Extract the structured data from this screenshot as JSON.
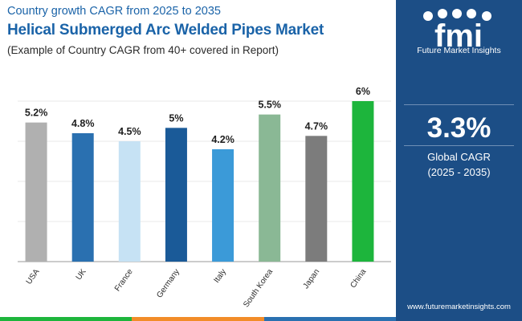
{
  "header": {
    "line1": "Country growth CAGR from 2025 to 2035",
    "line2": "Helical Submerged Arc Welded Pipes Market",
    "line3": "(Example of Country CAGR from 40+ covered in Report)"
  },
  "chart_data": {
    "type": "bar",
    "categories": [
      "USA",
      "UK",
      "France",
      "Germany",
      "Italy",
      "South Korea",
      "Japan",
      "China"
    ],
    "values": [
      5.2,
      4.8,
      4.5,
      5,
      4.2,
      5.5,
      4.7,
      6
    ],
    "data_labels": [
      "5.2%",
      "4.8%",
      "4.5%",
      "5%",
      "4.2%",
      "5.5%",
      "4.7%",
      "6%"
    ],
    "colors": [
      "#b0b0b0",
      "#2a70b0",
      "#c6e2f4",
      "#1a5a98",
      "#3b9ad8",
      "#8ab895",
      "#7c7c7c",
      "#1db53c"
    ],
    "ylim": [
      0,
      6
    ],
    "grid": true,
    "title": "",
    "xlabel": "",
    "ylabel": ""
  },
  "sidebar": {
    "logo_text": "fmi",
    "brand": "Future Market Insights",
    "cagr_value": "3.3%",
    "cagr_label": "Global CAGR",
    "cagr_period": "(2025 - 2035)",
    "website": "www.futuremarketinsights.com"
  },
  "colors": {
    "title": "#1a63a8",
    "panel": "#1c4e86",
    "bottom_bar": [
      "#1db53c",
      "#f28c28",
      "#2a70b0",
      "#1c4e86"
    ]
  }
}
